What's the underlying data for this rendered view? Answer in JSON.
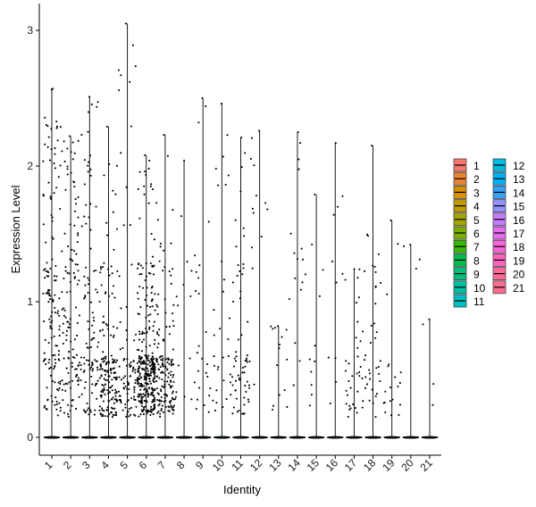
{
  "chart_data": {
    "type": "violin",
    "title": "",
    "xlabel": "Identity",
    "ylabel": "Expression Level",
    "ylim": [
      -0.15,
      3.2
    ],
    "yticks": [
      0,
      1,
      2,
      3
    ],
    "grid": false,
    "legend_position": "right",
    "categories": [
      "1",
      "2",
      "3",
      "4",
      "5",
      "6",
      "7",
      "8",
      "9",
      "10",
      "11",
      "12",
      "13",
      "14",
      "15",
      "16",
      "17",
      "18",
      "19",
      "20",
      "21"
    ],
    "series": [
      {
        "name": "1",
        "color": "#F8766D",
        "max": 2.57,
        "points": 140,
        "p_low": 0.25,
        "p_mid": 0.5,
        "p_high": 0.25
      },
      {
        "name": "2",
        "color": "#EA8331",
        "max": 2.22,
        "points": 120,
        "p_low": 0.3,
        "p_mid": 0.4,
        "p_high": 0.3
      },
      {
        "name": "3",
        "color": "#D89000",
        "max": 2.51,
        "points": 100,
        "p_low": 0.35,
        "p_mid": 0.4,
        "p_high": 0.25
      },
      {
        "name": "4",
        "color": "#C09B00",
        "max": 2.29,
        "points": 170,
        "p_low": 0.7,
        "p_mid": 0.2,
        "p_high": 0.1
      },
      {
        "name": "5",
        "color": "#A3A500",
        "max": 3.05,
        "points": 90,
        "p_low": 0.75,
        "p_mid": 0.15,
        "p_high": 0.1
      },
      {
        "name": "6",
        "color": "#7CAE00",
        "max": 2.08,
        "points": 320,
        "p_low": 0.7,
        "p_mid": 0.25,
        "p_high": 0.05
      },
      {
        "name": "7",
        "color": "#39B600",
        "max": 2.23,
        "points": 150,
        "p_low": 0.65,
        "p_mid": 0.25,
        "p_high": 0.1
      },
      {
        "name": "8",
        "color": "#00BB4E",
        "max": 2.04,
        "points": 14,
        "p_low": 0.5,
        "p_mid": 0.3,
        "p_high": 0.2
      },
      {
        "name": "9",
        "color": "#00BF7D",
        "max": 2.5,
        "points": 25,
        "p_low": 0.55,
        "p_mid": 0.3,
        "p_high": 0.15
      },
      {
        "name": "10",
        "color": "#00C1A3",
        "max": 2.46,
        "points": 30,
        "p_low": 0.55,
        "p_mid": 0.3,
        "p_high": 0.15
      },
      {
        "name": "11",
        "color": "#00BFC4",
        "max": 2.21,
        "points": 60,
        "p_low": 0.55,
        "p_mid": 0.35,
        "p_high": 0.1
      },
      {
        "name": "12",
        "color": "#00BAE0",
        "max": 2.26,
        "points": 12,
        "p_low": 0.1,
        "p_mid": 0.2,
        "p_high": 0.7
      },
      {
        "name": "13",
        "color": "#00B0F6",
        "max": 0.82,
        "points": 14,
        "p_low": 0.6,
        "p_mid": 0.4,
        "p_high": 0.0
      },
      {
        "name": "14",
        "color": "#35A2FF",
        "max": 2.25,
        "points": 16,
        "p_low": 0.3,
        "p_mid": 0.2,
        "p_high": 0.5
      },
      {
        "name": "15",
        "color": "#9590FF",
        "max": 1.79,
        "points": 10,
        "p_low": 0.4,
        "p_mid": 0.3,
        "p_high": 0.3
      },
      {
        "name": "16",
        "color": "#C77CFF",
        "max": 2.17,
        "points": 10,
        "p_low": 0.2,
        "p_mid": 0.3,
        "p_high": 0.5
      },
      {
        "name": "17",
        "color": "#E76BF3",
        "max": 1.24,
        "points": 35,
        "p_low": 0.6,
        "p_mid": 0.4,
        "p_high": 0.0
      },
      {
        "name": "18",
        "color": "#FA62DB",
        "max": 2.15,
        "points": 35,
        "p_low": 0.6,
        "p_mid": 0.35,
        "p_high": 0.05
      },
      {
        "name": "19",
        "color": "#FF62BC",
        "max": 1.6,
        "points": 18,
        "p_low": 0.7,
        "p_mid": 0.25,
        "p_high": 0.05
      },
      {
        "name": "20",
        "color": "#FF6A98",
        "max": 1.42,
        "points": 3,
        "p_low": 0.0,
        "p_mid": 0.0,
        "p_high": 1.0
      },
      {
        "name": "21",
        "color": "#FF6C91",
        "max": 0.87,
        "points": 3,
        "p_low": 0.6,
        "p_mid": 0.4,
        "p_high": 0.0
      }
    ]
  }
}
